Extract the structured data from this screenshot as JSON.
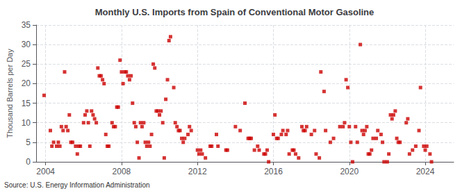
{
  "chart_data": {
    "type": "scatter",
    "title": "Monthly U.S. Imports from Spain of Conventional Motor Gasoline",
    "ylabel": "Thousand Barrels per Day",
    "annotations": [
      "Source: U.S. Energy Information Administration"
    ],
    "color": "#cc0000",
    "marker": "square",
    "grid": true,
    "xlim": [
      2003.5,
      2025.5
    ],
    "ylim": [
      0,
      35
    ],
    "xticks": [
      2004,
      2008,
      2012,
      2016,
      2020,
      2024
    ],
    "yticks": [
      0,
      5,
      10,
      15,
      20,
      25,
      30,
      35
    ],
    "x": [
      2003.92,
      2004.25,
      2004.33,
      2004.42,
      2004.58,
      2004.67,
      2004.75,
      2004.83,
      2004.92,
      2005.0,
      2005.08,
      2005.17,
      2005.25,
      2005.33,
      2005.42,
      2005.58,
      2005.67,
      2005.75,
      2005.83,
      2006.0,
      2006.08,
      2006.17,
      2006.25,
      2006.33,
      2006.42,
      2006.5,
      2006.58,
      2006.67,
      2006.75,
      2006.83,
      2006.92,
      2007.0,
      2007.08,
      2007.17,
      2007.25,
      2007.33,
      2007.5,
      2007.58,
      2007.67,
      2007.75,
      2007.83,
      2007.92,
      2008.0,
      2008.08,
      2008.17,
      2008.25,
      2008.33,
      2008.42,
      2008.5,
      2008.58,
      2008.67,
      2008.75,
      2008.83,
      2008.92,
      2009.0,
      2009.08,
      2009.17,
      2009.25,
      2009.33,
      2009.42,
      2009.5,
      2009.58,
      2009.67,
      2009.75,
      2009.83,
      2009.92,
      2010.0,
      2010.08,
      2010.17,
      2010.25,
      2010.33,
      2010.42,
      2010.5,
      2010.58,
      2010.75,
      2010.83,
      2010.92,
      2011.0,
      2011.08,
      2011.17,
      2011.25,
      2011.33,
      2011.5,
      2011.58,
      2011.67,
      2012.0,
      2012.08,
      2012.17,
      2012.25,
      2012.42,
      2012.67,
      2012.75,
      2013.0,
      2013.08,
      2013.5,
      2013.58,
      2014.0,
      2014.25,
      2014.5,
      2014.67,
      2014.75,
      2014.83,
      2015.0,
      2015.17,
      2015.25,
      2015.5,
      2015.58,
      2015.67,
      2015.75,
      2016.0,
      2016.08,
      2016.17,
      2016.25,
      2016.42,
      2016.5,
      2016.67,
      2016.75,
      2016.83,
      2017.0,
      2017.08,
      2017.17,
      2017.33,
      2017.5,
      2017.58,
      2017.67,
      2017.75,
      2018.0,
      2018.17,
      2018.25,
      2018.42,
      2018.5,
      2018.67,
      2018.75,
      2019.0,
      2019.17,
      2019.5,
      2019.67,
      2019.75,
      2019.83,
      2019.92,
      2020.0,
      2020.08,
      2020.17,
      2020.33,
      2020.42,
      2020.58,
      2020.67,
      2020.75,
      2020.83,
      2020.92,
      2021.0,
      2021.08,
      2021.17,
      2021.25,
      2021.42,
      2021.5,
      2021.67,
      2021.75,
      2021.83,
      2022.0,
      2022.08,
      2022.17,
      2022.25,
      2022.33,
      2022.42,
      2022.5,
      2022.58,
      2022.67,
      2023.0,
      2023.08,
      2023.17,
      2023.33,
      2023.5,
      2023.67,
      2023.75,
      2023.92,
      2024.0,
      2024.08,
      2024.25,
      2024.33
    ],
    "values": [
      17,
      8,
      4,
      5,
      4,
      5,
      4,
      9,
      8,
      23,
      9,
      8,
      12,
      5,
      5,
      4,
      2,
      4,
      4,
      10,
      12,
      13,
      10,
      4,
      13,
      12,
      11,
      10,
      24,
      22,
      22,
      21,
      20,
      7,
      4,
      4,
      10,
      9,
      9,
      14,
      14,
      26,
      23,
      20,
      23,
      23,
      22,
      21,
      22,
      15,
      10,
      9,
      5,
      1,
      10,
      9,
      10,
      5,
      4,
      5,
      4,
      7,
      25,
      24,
      13,
      13,
      12,
      13,
      10,
      1,
      16,
      21,
      31,
      32,
      19,
      10,
      9,
      8,
      8,
      6,
      5,
      6,
      7,
      9,
      8,
      3,
      2,
      3,
      2,
      1,
      4,
      4,
      7,
      4,
      3,
      3,
      9,
      8,
      15,
      6,
      6,
      6,
      3,
      4,
      3,
      2,
      2,
      3,
      0,
      7,
      12,
      6,
      6,
      7,
      8,
      7,
      8,
      2,
      3,
      3,
      2,
      1,
      9,
      8,
      8,
      9,
      7,
      8,
      2,
      1,
      23,
      18,
      8,
      5,
      6,
      9,
      9,
      10,
      21,
      19,
      9,
      5,
      0,
      9,
      5,
      30,
      8,
      7,
      8,
      9,
      2,
      2,
      3,
      6,
      6,
      8,
      7,
      5,
      0,
      0,
      2,
      12,
      11,
      12,
      13,
      6,
      5,
      5,
      10,
      11,
      2,
      3,
      4,
      8,
      19,
      4,
      3,
      4,
      2,
      0
    ]
  }
}
